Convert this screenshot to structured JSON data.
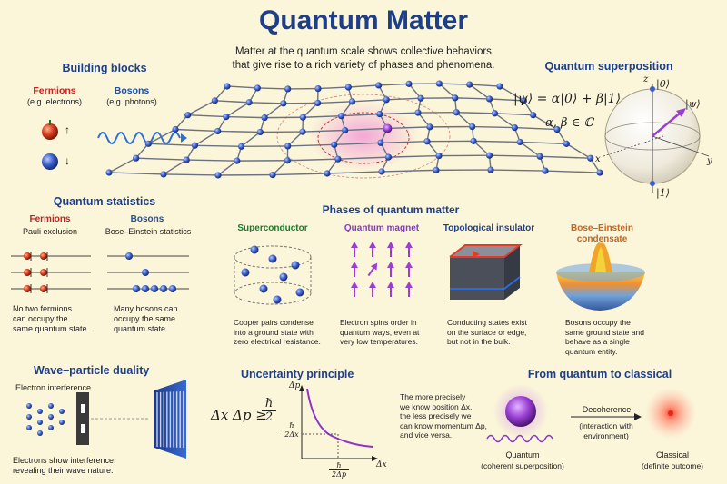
{
  "title": "Quantum Matter",
  "subtitle_line1": "Matter at the quantum scale shows collective behaviors",
  "subtitle_line2": "that give rise to a rich variety of phases and phenomena.",
  "building_blocks": {
    "heading": "Building blocks",
    "fermions": "Fermions",
    "fermions_eg": "(e.g. electrons)",
    "bosons": "Bosons",
    "bosons_eg": "(e.g. photons)",
    "spin_up": "↑",
    "spin_down": "↓"
  },
  "superposition": {
    "heading": "Quantum superposition",
    "equation": "|ψ⟩ = α|0⟩ + β|1⟩",
    "coeffs": "α, β ∈ ℂ",
    "ket0": "|0⟩",
    "ket1": "|1⟩",
    "psi": "|ψ⟩",
    "axis_x": "x",
    "axis_y": "y",
    "axis_z": "z"
  },
  "statistics": {
    "heading": "Quantum statistics",
    "fermions": "Fermions",
    "fermions_rule": "Pauli exclusion",
    "bosons": "Bosons",
    "bosons_rule": "Bose–Einstein statistics",
    "fermions_note1": "No two fermions",
    "fermions_note2": "can occupy the",
    "fermions_note3": "same quantum state.",
    "bosons_note1": "Many bosons can",
    "bosons_note2": "occupy the same",
    "bosons_note3": "quantum state."
  },
  "phases": {
    "heading": "Phases of quantum matter",
    "items": [
      {
        "name": "Superconductor",
        "desc1": "Cooper pairs condense",
        "desc2": "into a ground state with",
        "desc3": "zero electrical resistance."
      },
      {
        "name": "Quantum magnet",
        "desc1": "Electron spins order in",
        "desc2": "quantum ways, even at",
        "desc3": "very low temperatures."
      },
      {
        "name": "Topological insulator",
        "desc1": "Conducting states exist",
        "desc2": "on the surface or edge,",
        "desc3": "but not in the bulk."
      },
      {
        "name1": "Bose–Einstein",
        "name2": "condensate",
        "desc1": "Bosons occupy the",
        "desc2": "same ground state and",
        "desc3": "behave as a single",
        "desc4": "quantum entity."
      }
    ]
  },
  "duality": {
    "heading": "Wave–particle duality",
    "label": "Electron interference",
    "note1": "Electrons show interference,",
    "note2": "revealing their wave nature."
  },
  "uncertainty": {
    "heading": "Uncertainty principle",
    "equation": "Δx Δp ≥",
    "hbar": "ℏ",
    "two": "2",
    "axis_p": "Δp",
    "axis_x": "Δx",
    "tick_y_num": "ℏ",
    "tick_y_den": "2Δx",
    "tick_x_num": "ℏ",
    "tick_x_den": "2Δp",
    "note1": "The more precisely",
    "note2": "we know position Δx,",
    "note3": "the less precisely we",
    "note4": "can know momentum Δp,",
    "note5": "and vice versa."
  },
  "classical": {
    "heading": "From quantum to classical",
    "decoherence": "Decoherence",
    "interaction1": "(interaction with",
    "interaction2": "environment)",
    "quantum": "Quantum",
    "quantum_desc": "(coherent superposition)",
    "classical": "Classical",
    "classical_desc": "(definite outcome)"
  },
  "colors": {
    "title": "#1d3f8a",
    "background": "#fbf5d9",
    "fermion": "#d63a1e",
    "boson": "#3a5fc8",
    "wave": "#2b6fd6",
    "lattice_node": "#5a6fcf",
    "spin_arrow": "#9b3fd4",
    "glow": "#e779c4"
  },
  "icons": [
    "fermion-sphere-icon",
    "boson-sphere-icon",
    "wave-icon",
    "bloch-sphere-icon",
    "lattice-icon",
    "spin-arrow-icon",
    "cube-icon",
    "mexican-hat-icon",
    "quantum-orb-icon",
    "classical-dot-icon"
  ]
}
